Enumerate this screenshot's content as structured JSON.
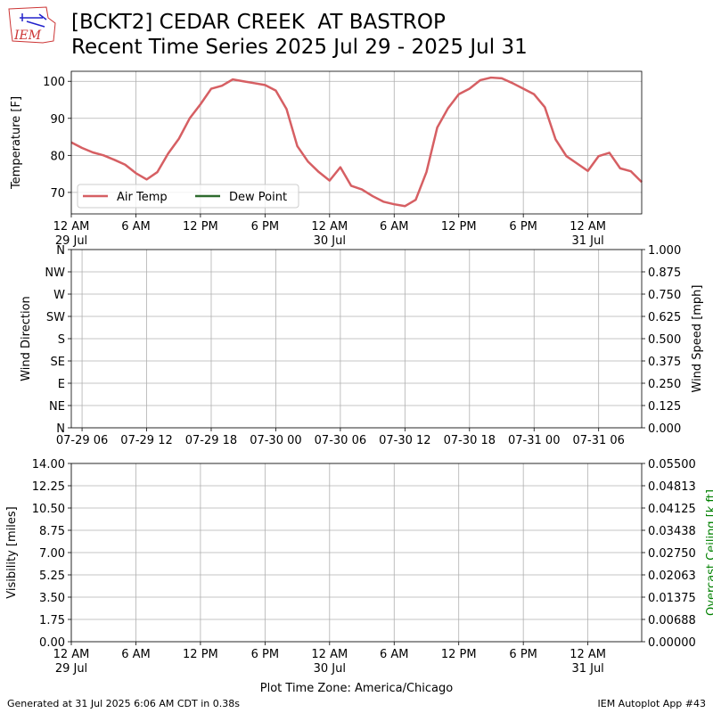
{
  "logo": "IEM",
  "footer_left": "Generated at 31 Jul 2025 6:06 AM CDT in 0.38s",
  "footer_right": "IEM Autoplot App #43",
  "chart_data": [
    {
      "type": "line",
      "title": "[BCKT2] CEDAR CREEK  AT BASTROP",
      "subtitle": "Recent Time Series 2025 Jul 29 - 2025 Jul 31",
      "ylabel": "Temperature [F]",
      "x": [
        0,
        1,
        2,
        3,
        4,
        5,
        6,
        7,
        8,
        9,
        10,
        11,
        12,
        13,
        14,
        15,
        16,
        17,
        18,
        19,
        20,
        21,
        22,
        23,
        24,
        25,
        26,
        27,
        28,
        29,
        30,
        31,
        32,
        33,
        34,
        35,
        36,
        37,
        38,
        39,
        40,
        41,
        42,
        43,
        44,
        45,
        46,
        47,
        48,
        49,
        50,
        51,
        52,
        53
      ],
      "series": [
        {
          "name": "Air Temp",
          "color": "#d65f63",
          "values": [
            83.5,
            82,
            80.8,
            80,
            78.8,
            77.5,
            75.2,
            73.5,
            75.5,
            80.5,
            84.5,
            90,
            93.8,
            98,
            98.8,
            100.5,
            100,
            99.5,
            99,
            97.5,
            92.5,
            82.5,
            78.3,
            75.5,
            73.2,
            76.8,
            71.8,
            70.8,
            69,
            67.5,
            66.8,
            66.3,
            68,
            75.5,
            87.5,
            92.7,
            96.5,
            98,
            100.3,
            101,
            100.8,
            99.5,
            98,
            96.5,
            93,
            84.3,
            79.8,
            77.8,
            75.8,
            79.8,
            80.7,
            76.5,
            75.7,
            72.8
          ]
        },
        {
          "name": "Dew Point",
          "color": "#2e6b2e",
          "values": [
            null,
            null,
            null,
            null,
            null,
            null,
            null,
            null,
            null,
            null,
            null,
            null,
            null,
            null,
            null,
            null,
            null,
            null,
            null,
            null,
            null,
            null,
            null,
            null,
            null,
            null,
            null,
            null,
            null,
            null,
            null,
            null,
            null,
            null,
            null,
            null,
            null,
            null,
            null,
            null,
            null,
            null,
            null,
            null,
            null,
            null,
            null,
            null,
            null,
            null,
            null,
            null,
            null,
            null
          ]
        }
      ],
      "xlim": [
        0,
        53
      ],
      "xticks": [
        {
          "value": 0,
          "label": "12 AM\n29 Jul"
        },
        {
          "value": 6,
          "label": "6 AM"
        },
        {
          "value": 12,
          "label": "12 PM"
        },
        {
          "value": 18,
          "label": "6 PM"
        },
        {
          "value": 24,
          "label": "12 AM\n30 Jul"
        },
        {
          "value": 30,
          "label": "6 AM"
        },
        {
          "value": 36,
          "label": "12 PM"
        },
        {
          "value": 42,
          "label": "6 PM"
        },
        {
          "value": 48,
          "label": "12 AM\n31 Jul"
        }
      ],
      "ylim": [
        64.2,
        102.7
      ],
      "yticks": [
        70,
        80,
        90,
        100
      ],
      "grid": true,
      "legend": "lower left"
    },
    {
      "type": "line",
      "ylabel": "Wind Direction",
      "y2label": "Wind Speed [mph]",
      "series": [],
      "xlim": [
        5,
        58
      ],
      "xticks": [
        {
          "value": 6,
          "label": "07-29 06"
        },
        {
          "value": 12,
          "label": "07-29 12"
        },
        {
          "value": 18,
          "label": "07-29 18"
        },
        {
          "value": 24,
          "label": "07-30 00"
        },
        {
          "value": 30,
          "label": "07-30 06"
        },
        {
          "value": 36,
          "label": "07-30 12"
        },
        {
          "value": 42,
          "label": "07-30 18"
        },
        {
          "value": 48,
          "label": "07-31 00"
        },
        {
          "value": 54,
          "label": "07-31 06"
        }
      ],
      "ylim": [
        0,
        360
      ],
      "yticks": [
        {
          "value": 0,
          "label": "N"
        },
        {
          "value": 45,
          "label": "NE"
        },
        {
          "value": 90,
          "label": "E"
        },
        {
          "value": 135,
          "label": "SE"
        },
        {
          "value": 180,
          "label": "S"
        },
        {
          "value": 225,
          "label": "SW"
        },
        {
          "value": 270,
          "label": "W"
        },
        {
          "value": 315,
          "label": "NW"
        },
        {
          "value": 360,
          "label": "N"
        }
      ],
      "y2lim": [
        0,
        1
      ],
      "y2ticks": [
        {
          "value": 0,
          "label": "0.000"
        },
        0.125,
        {
          "value": 0.25,
          "label": "0.250"
        },
        0.375,
        {
          "value": 0.5,
          "label": "0.500"
        },
        0.625,
        {
          "value": 0.75,
          "label": "0.750"
        },
        0.875,
        {
          "value": 1,
          "label": "1.000"
        }
      ],
      "grid": true
    },
    {
      "type": "line",
      "ylabel": "Visibility [miles]",
      "y2label": "Overcast Ceiling [k ft]",
      "y2label_color": "#008000",
      "xlabel": "Plot Time Zone: America/Chicago",
      "series": [],
      "xlim": [
        0,
        53
      ],
      "xticks": [
        {
          "value": 0,
          "label": "12 AM\n29 Jul"
        },
        {
          "value": 6,
          "label": "6 AM"
        },
        {
          "value": 12,
          "label": "12 PM"
        },
        {
          "value": 18,
          "label": "6 PM"
        },
        {
          "value": 24,
          "label": "12 AM\n30 Jul"
        },
        {
          "value": 30,
          "label": "6 AM"
        },
        {
          "value": 36,
          "label": "12 PM"
        },
        {
          "value": 42,
          "label": "6 PM"
        },
        {
          "value": 48,
          "label": "12 AM\n31 Jul"
        }
      ],
      "ylim": [
        0,
        14
      ],
      "yticks": [
        {
          "value": 0,
          "label": "0.00"
        },
        1.75,
        {
          "value": 3.5,
          "label": "3.50"
        },
        5.25,
        {
          "value": 7,
          "label": "7.00"
        },
        8.75,
        {
          "value": 10.5,
          "label": "10.50"
        },
        12.25,
        {
          "value": 14,
          "label": "14.00"
        }
      ],
      "y2lim": [
        0,
        0.055
      ],
      "y2ticks": [
        {
          "value": 0,
          "label": "0.00000"
        },
        {
          "value": 0.006875,
          "label": "0.00688"
        },
        0.01375,
        {
          "value": 0.020625,
          "label": "0.02063"
        },
        {
          "value": 0.0275,
          "label": "0.02750"
        },
        {
          "value": 0.034375,
          "label": "0.03438"
        },
        0.04125,
        {
          "value": 0.048125,
          "label": "0.04813"
        },
        {
          "value": 0.055,
          "label": "0.05500"
        }
      ],
      "grid": true
    }
  ]
}
